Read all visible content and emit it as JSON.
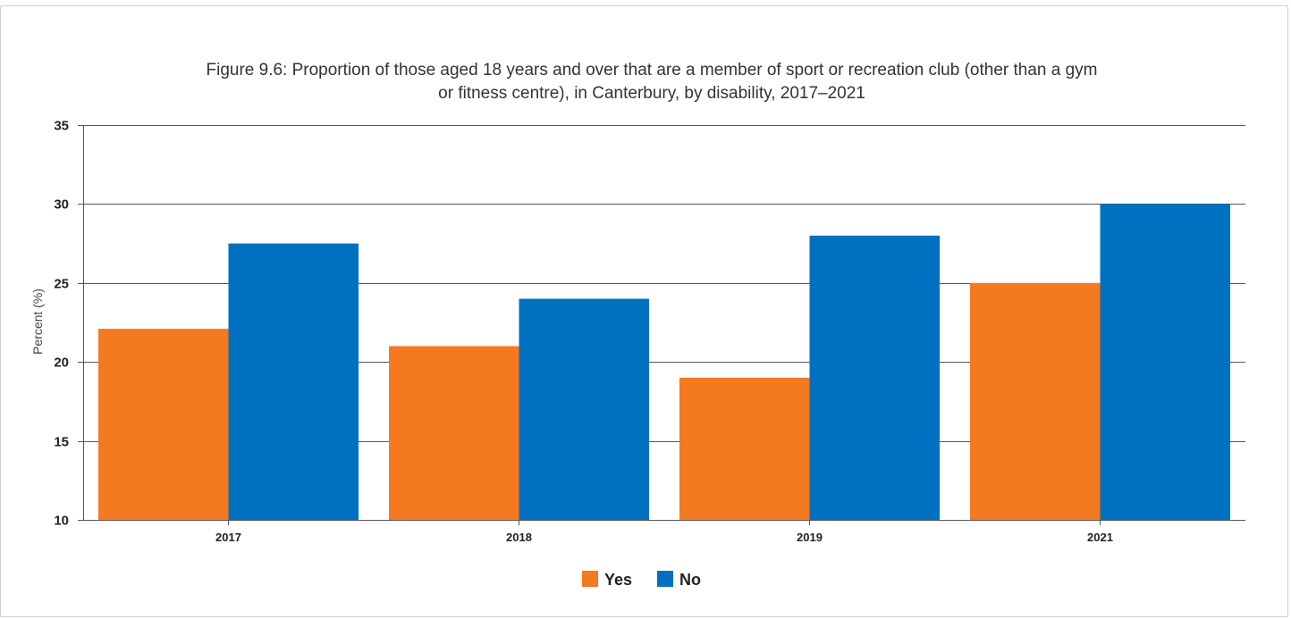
{
  "chart_data": {
    "type": "bar",
    "title": "Figure 9.6: Proportion of those aged 18 years and over that are a member of sport or recreation club (other than a gym or fitness centre), in Canterbury, by disability, 2017–2021",
    "title_lines": [
      "Figure 9.6: Proportion of those aged 18 years and over that are a member of sport or recreation club (other than a gym",
      "or fitness centre), in Canterbury, by disability, 2017–2021"
    ],
    "xlabel": "",
    "ylabel": "Percent (%)",
    "categories": [
      "2017",
      "2018",
      "2019",
      "2021"
    ],
    "series": [
      {
        "name": "Yes",
        "color": "#f47920",
        "values": [
          22.1,
          21.0,
          19.0,
          25.0
        ]
      },
      {
        "name": "No",
        "color": "#0070c0",
        "values": [
          27.5,
          24.0,
          28.0,
          30.0
        ]
      }
    ],
    "ylim": [
      10,
      35
    ],
    "yticks": [
      10,
      15,
      20,
      25,
      30,
      35
    ],
    "grid": true,
    "legend_position": "bottom-center"
  }
}
